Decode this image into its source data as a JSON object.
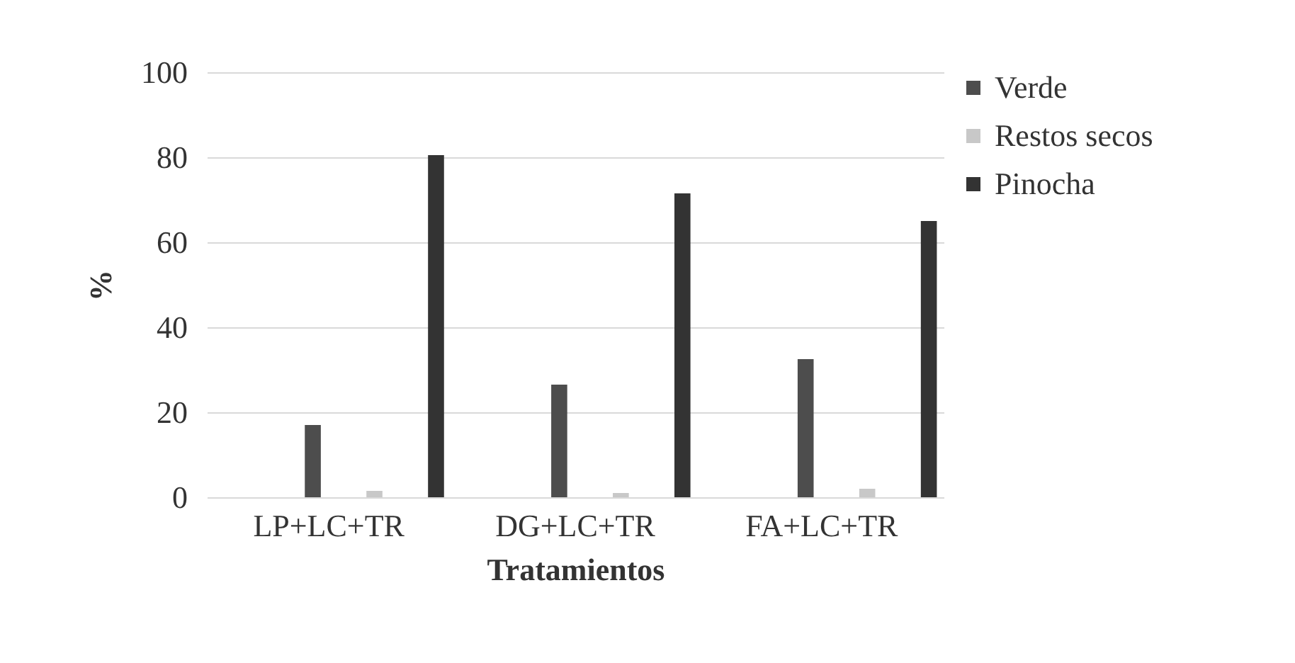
{
  "chart_data": {
    "type": "bar",
    "xlabel": "Tratamientos",
    "ylabel": "%",
    "categories": [
      "LP+LC+TR",
      "DG+LC+TR",
      "FA+LC+TR"
    ],
    "series": [
      {
        "name": "Verde",
        "color": "#4d4d4d",
        "values": [
          17,
          26.5,
          32.5
        ]
      },
      {
        "name": "Restos secos",
        "color": "#c8c8c8",
        "values": [
          1.5,
          1,
          2
        ]
      },
      {
        "name": "Pinocha",
        "color": "#333333",
        "values": [
          80.5,
          71.5,
          65
        ]
      }
    ],
    "ylim": [
      0,
      100
    ],
    "yticks": [
      0,
      20,
      40,
      60,
      80,
      100
    ],
    "grid": "y",
    "legend": "right"
  }
}
